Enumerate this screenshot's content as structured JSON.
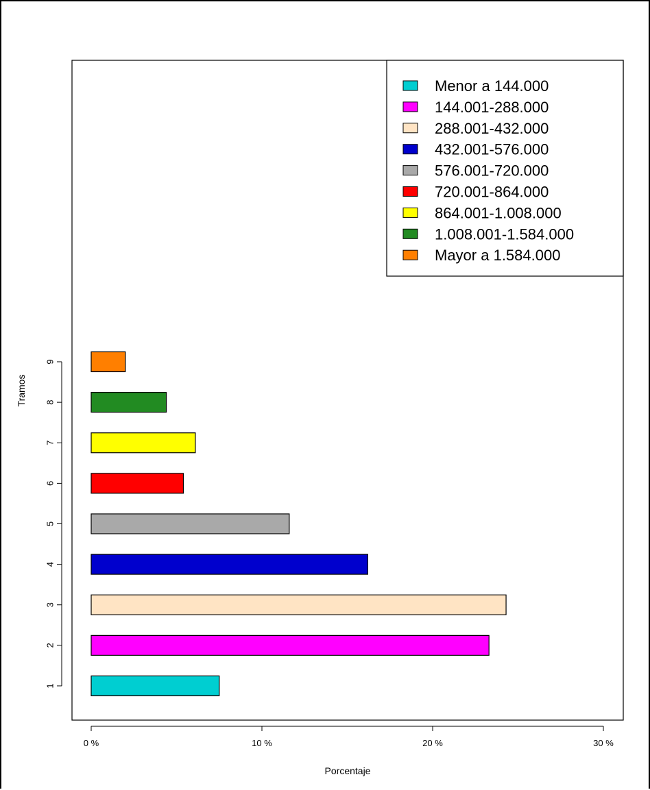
{
  "chart_data": {
    "type": "bar",
    "orientation": "horizontal",
    "title": "",
    "xlabel": "Porcentaje",
    "ylabel": "Tramos",
    "xlim": [
      0,
      30
    ],
    "x_ticks": [
      0,
      10,
      20,
      30
    ],
    "x_tick_labels": [
      "0 %",
      "10 %",
      "20 %",
      "30 %"
    ],
    "categories": [
      "1",
      "2",
      "3",
      "4",
      "5",
      "6",
      "7",
      "8",
      "9"
    ],
    "values": [
      7.5,
      23.3,
      24.3,
      16.2,
      11.6,
      5.4,
      6.1,
      4.4,
      2.0
    ],
    "colors": [
      "#00CED1",
      "#FF00FF",
      "#FFE4C4",
      "#0000CD",
      "#A9A9A9",
      "#FF0000",
      "#FFFF00",
      "#228B22",
      "#FF7F00"
    ],
    "grid": false,
    "legend": {
      "position": "top-right",
      "entries": [
        {
          "label": "Menor a 144.000",
          "color": "#00CED1"
        },
        {
          "label": "144.001-288.000",
          "color": "#FF00FF"
        },
        {
          "label": "288.001-432.000",
          "color": "#FFE4C4"
        },
        {
          "label": "432.001-576.000",
          "color": "#0000CD"
        },
        {
          "label": "576.001-720.000",
          "color": "#A9A9A9"
        },
        {
          "label": "720.001-864.000",
          "color": "#FF0000"
        },
        {
          "label": "864.001-1.008.000",
          "color": "#FFFF00"
        },
        {
          "label": "1.008.001-1.584.000",
          "color": "#228B22"
        },
        {
          "label": "Mayor a 1.584.000",
          "color": "#FF7F00"
        }
      ]
    }
  }
}
